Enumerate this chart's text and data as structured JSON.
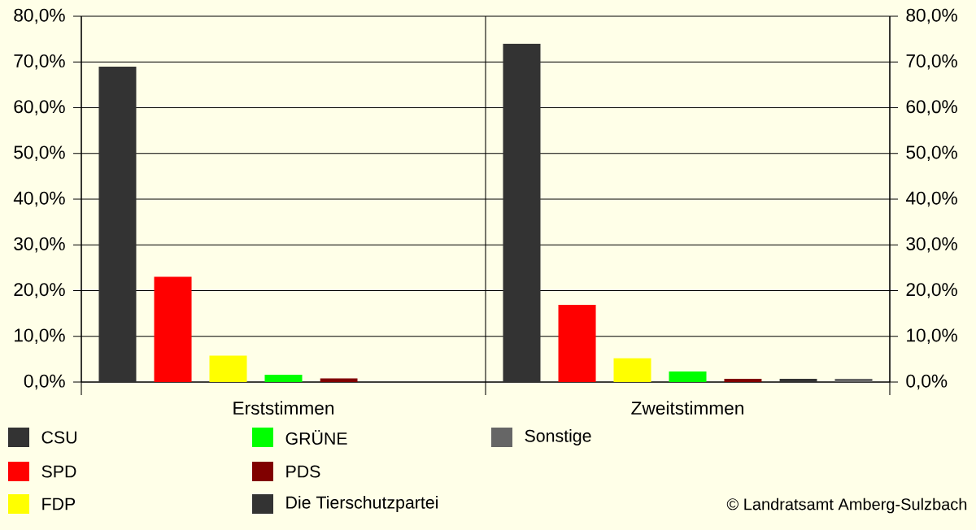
{
  "chart_data": {
    "type": "bar",
    "categories": [
      "Erststimmen",
      "Zweitstimmen"
    ],
    "series": [
      {
        "name": "CSU",
        "color": "#333333",
        "values": [
          69.0,
          74.0
        ]
      },
      {
        "name": "SPD",
        "color": "#ff0000",
        "values": [
          23.0,
          16.9
        ]
      },
      {
        "name": "FDP",
        "color": "#ffff00",
        "values": [
          5.8,
          5.2
        ]
      },
      {
        "name": "GRÜNE",
        "color": "#00ff00",
        "values": [
          1.6,
          2.3
        ]
      },
      {
        "name": "PDS",
        "color": "#800000",
        "values": [
          0.8,
          0.7
        ]
      },
      {
        "name": "Die Tierschutzpartei",
        "color": "#333333",
        "values": [
          null,
          0.7
        ]
      },
      {
        "name": "Sonstige",
        "color": "#666666",
        "values": [
          null,
          0.7
        ]
      }
    ],
    "ylim": [
      0,
      80
    ],
    "yticks": [
      {
        "value": 0,
        "label": "0,0%"
      },
      {
        "value": 10,
        "label": "10,0%"
      },
      {
        "value": 20,
        "label": "20,0%"
      },
      {
        "value": 30,
        "label": "30,0%"
      },
      {
        "value": 40,
        "label": "40,0%"
      },
      {
        "value": 50,
        "label": "50,0%"
      },
      {
        "value": 60,
        "label": "60,0%"
      },
      {
        "value": 70,
        "label": "70,0%"
      },
      {
        "value": 80,
        "label": "80,0%"
      }
    ],
    "y2lim": [
      0,
      80
    ],
    "y2ticks": [
      {
        "value": 0,
        "label": "0,0%"
      },
      {
        "value": 10,
        "label": "10,0%"
      },
      {
        "value": 20,
        "label": "20,0%"
      },
      {
        "value": 30,
        "label": "30,0%"
      },
      {
        "value": 40,
        "label": "40,0%"
      },
      {
        "value": 50,
        "label": "50,0%"
      },
      {
        "value": 60,
        "label": "60,0%"
      },
      {
        "value": 70,
        "label": "70,0%"
      },
      {
        "value": 80,
        "label": "80,0%"
      }
    ],
    "grid": "y",
    "legend": "bottom",
    "annotations": [
      "© Landratsamt Amberg-Sulzbach"
    ]
  }
}
